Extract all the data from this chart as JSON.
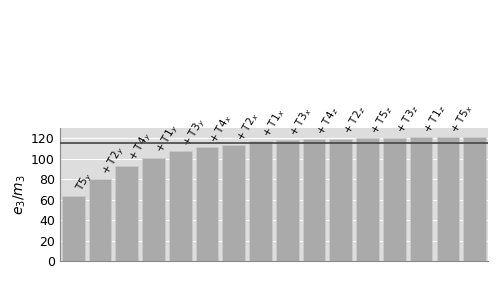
{
  "bar_values": [
    64,
    80,
    93,
    101,
    107,
    111,
    113,
    117,
    118,
    119,
    119.5,
    120,
    120.3,
    120.7,
    121,
    121.3
  ],
  "bar_labels": [
    "T5$_y$",
    "+ T2$_y$",
    "+ T4$_y$",
    "+ T1$_y$",
    "+ T3$_y$",
    "+ T4$_x$",
    "+ T2$_x$",
    "+ T1$_x$",
    "+ T3$_x$",
    "+ T4$_z$",
    "+ T2$_z$",
    "+ T5$_z$",
    "+ T3$_z$",
    "+ T1$_z$",
    "+ T5$_x$",
    ""
  ],
  "bar_color": "#aaaaaa",
  "bar_edgecolor": "#cccccc",
  "hline_y": 115.5,
  "hline_color": "#444444",
  "ylabel": "$e_3/m_3$",
  "ylim": [
    0,
    130
  ],
  "yticks": [
    0,
    20,
    40,
    60,
    80,
    100,
    120
  ],
  "grid_color": "#ffffff",
  "background_color": "#ffffff",
  "plot_bg_color": "#dddddd",
  "label_fontsize": 7.5,
  "ylabel_fontsize": 10
}
